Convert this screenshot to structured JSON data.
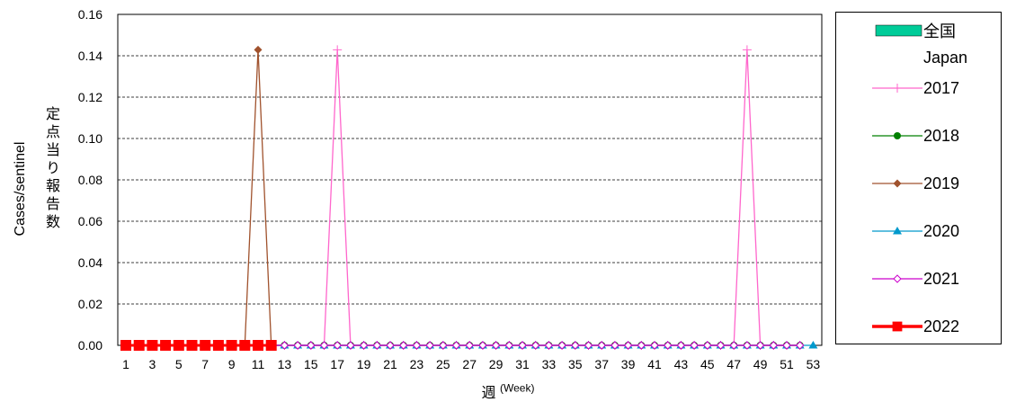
{
  "chart_data": {
    "type": "line",
    "ylabel_en": "Cases/sentinel",
    "ylabel_jp": "定点当り報告数",
    "xlabel_jp": "週",
    "xlabel_en": "(Week)",
    "ylim": [
      0,
      0.16
    ],
    "yticks": [
      "0.00",
      "0.02",
      "0.04",
      "0.06",
      "0.08",
      "0.10",
      "0.12",
      "0.14",
      "0.16"
    ],
    "xlim": [
      1,
      53
    ],
    "xticks": [
      1,
      3,
      5,
      7,
      9,
      11,
      13,
      15,
      17,
      19,
      21,
      23,
      25,
      27,
      29,
      31,
      33,
      35,
      37,
      39,
      41,
      43,
      45,
      47,
      49,
      51,
      53
    ],
    "grid": "horizontal dashed",
    "legend": {
      "placement": "right",
      "title_jp": "全国",
      "title_en": "Japan",
      "title_color": "#00cc99"
    },
    "series": [
      {
        "name": "2017",
        "color": "#ff66cc",
        "marker": "plus",
        "weeks": 52,
        "spikes": [
          {
            "week": 17,
            "value": 0.1429
          },
          {
            "week": 48,
            "value": 0.1429
          }
        ]
      },
      {
        "name": "2018",
        "color": "#008000",
        "marker": "circle",
        "weeks": 52,
        "spikes": []
      },
      {
        "name": "2019",
        "color": "#a0522d",
        "marker": "diamond",
        "weeks": 52,
        "spikes": [
          {
            "week": 11,
            "value": 0.1429
          }
        ]
      },
      {
        "name": "2020",
        "color": "#0099cc",
        "marker": "triangle",
        "weeks": 53,
        "spikes": []
      },
      {
        "name": "2021",
        "color": "#cc00cc",
        "marker": "open-diamond",
        "weeks": 52,
        "spikes": []
      },
      {
        "name": "2022",
        "color": "#ff0000",
        "marker": "square",
        "weeks": 12,
        "spikes": []
      }
    ]
  }
}
